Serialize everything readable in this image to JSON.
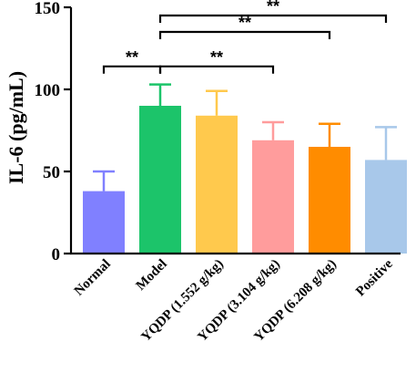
{
  "chart_data": {
    "type": "bar",
    "title": "",
    "xlabel": "",
    "ylabel": "IL-6 (pg/mL)",
    "ylim": [
      0,
      150
    ],
    "yticks": [
      0,
      50,
      100,
      150
    ],
    "grid": false,
    "categories": [
      "Normal",
      "Model",
      "YQDP (1.552 g/kg)",
      "YQDP (3.104 g/kg)",
      "YQDP (6.208 g/kg)",
      "Positive"
    ],
    "values": [
      38,
      90,
      84,
      69,
      65,
      57
    ],
    "errors": [
      12,
      13,
      15,
      11,
      14,
      20
    ],
    "colors": [
      "#8080ff",
      "#1cc46a",
      "#ffc94d",
      "#ff9c9c",
      "#ff8c00",
      "#a8c8ea"
    ],
    "significance": [
      {
        "from": 0,
        "to": 1,
        "label": "**",
        "y": 114
      },
      {
        "from": 1,
        "to": 3,
        "label": "**",
        "y": 114
      },
      {
        "from": 1,
        "to": 4,
        "label": "**",
        "y": 135
      },
      {
        "from": 1,
        "to": 5,
        "label": "**",
        "y": 145
      }
    ]
  }
}
